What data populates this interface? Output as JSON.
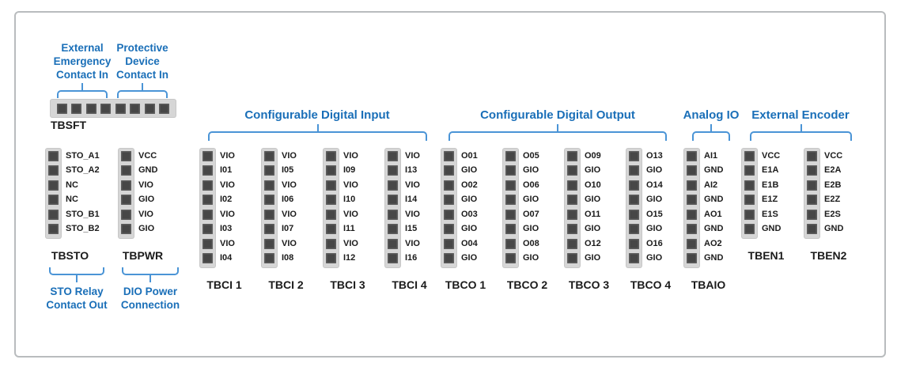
{
  "palette": {
    "accent_blue": "#1a6fb8",
    "bracket_blue": "#4a94d6",
    "pin_fill": "#474747",
    "strip_fill": "#d6d6d6",
    "text_black": "#1b1b1b"
  },
  "section_headers": [
    "Configurable Digital Input",
    "Configurable Digital Output",
    "Analog IO",
    "External Encoder"
  ],
  "tbsft": {
    "name": "TBSFT",
    "pin_count": 8,
    "top_labels": [
      {
        "lines": [
          "External",
          "Emergency",
          "Contact In"
        ]
      },
      {
        "lines": [
          "Protective",
          "Device",
          "Contact In"
        ]
      }
    ]
  },
  "bottom_labels": [
    {
      "lines": [
        "STO Relay",
        "Contact Out"
      ]
    },
    {
      "lines": [
        "DIO Power",
        "Connection"
      ]
    }
  ],
  "columns": [
    {
      "name": "TBSTO",
      "pins": [
        "STO_A1",
        "STO_A2",
        "NC",
        "NC",
        "STO_B1",
        "STO_B2"
      ]
    },
    {
      "name": "TBPWR",
      "pins": [
        "VCC",
        "GND",
        "VIO",
        "GIO",
        "VIO",
        "GIO"
      ]
    },
    {
      "name": "TBCI 1",
      "pins": [
        "VIO",
        "I01",
        "VIO",
        "I02",
        "VIO",
        "I03",
        "VIO",
        "I04"
      ]
    },
    {
      "name": "TBCI 2",
      "pins": [
        "VIO",
        "I05",
        "VIO",
        "I06",
        "VIO",
        "I07",
        "VIO",
        "I08"
      ]
    },
    {
      "name": "TBCI 3",
      "pins": [
        "VIO",
        "I09",
        "VIO",
        "I10",
        "VIO",
        "I11",
        "VIO",
        "I12"
      ]
    },
    {
      "name": "TBCI 4",
      "pins": [
        "VIO",
        "I13",
        "VIO",
        "I14",
        "VIO",
        "I15",
        "VIO",
        "I16"
      ]
    },
    {
      "name": "TBCO 1",
      "pins": [
        "O01",
        "GIO",
        "O02",
        "GIO",
        "O03",
        "GIO",
        "O04",
        "GIO"
      ]
    },
    {
      "name": "TBCO 2",
      "pins": [
        "O05",
        "GIO",
        "O06",
        "GIO",
        "O07",
        "GIO",
        "O08",
        "GIO"
      ]
    },
    {
      "name": "TBCO 3",
      "pins": [
        "O09",
        "GIO",
        "O10",
        "GIO",
        "O11",
        "GIO",
        "O12",
        "GIO"
      ]
    },
    {
      "name": "TBCO 4",
      "pins": [
        "O13",
        "GIO",
        "O14",
        "GIO",
        "O15",
        "GIO",
        "O16",
        "GIO"
      ]
    },
    {
      "name": "TBAIO",
      "pins": [
        "AI1",
        "GND",
        "AI2",
        "GND",
        "AO1",
        "GND",
        "AO2",
        "GND"
      ]
    },
    {
      "name": "TBEN1",
      "pins": [
        "VCC",
        "E1A",
        "E1B",
        "E1Z",
        "E1S",
        "GND"
      ]
    },
    {
      "name": "TBEN2",
      "pins": [
        "VCC",
        "E2A",
        "E2B",
        "E2Z",
        "E2S",
        "GND"
      ]
    }
  ]
}
